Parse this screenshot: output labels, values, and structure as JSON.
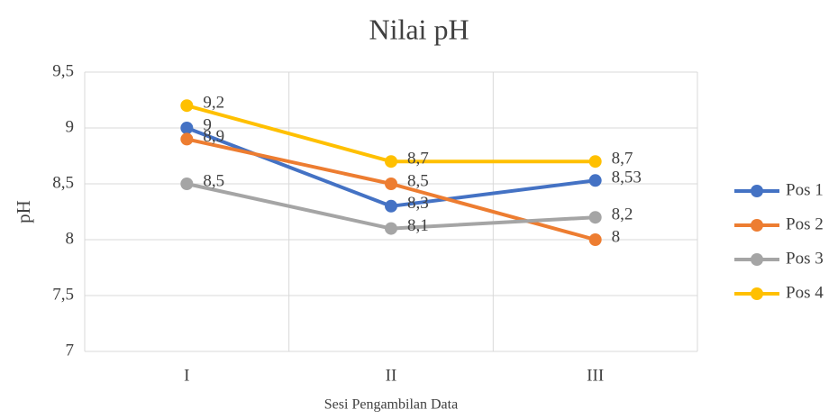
{
  "chart_data": {
    "type": "line",
    "title": "Nilai pH",
    "x_label": "Sesi Pengambilan Data",
    "y_label": "pH",
    "categories": [
      "I",
      "II",
      "III"
    ],
    "series": [
      {
        "name": "Pos 1",
        "color": "#4472c4",
        "values": [
          9,
          8.3,
          8.53
        ],
        "value_labels": [
          "9",
          "8,3",
          "8,53"
        ]
      },
      {
        "name": "Pos 2",
        "color": "#ed7d31",
        "values": [
          8.9,
          8.5,
          8
        ],
        "value_labels": [
          "8,9",
          "8,5",
          "8"
        ]
      },
      {
        "name": "Pos 3",
        "color": "#a5a5a5",
        "values": [
          8.5,
          8.1,
          8.2
        ],
        "value_labels": [
          "8,5",
          "8,1",
          "8,2"
        ]
      },
      {
        "name": "Pos 4",
        "color": "#ffc000",
        "values": [
          9.2,
          8.7,
          8.7
        ],
        "value_labels": [
          "9,2",
          "8,7",
          "8,7"
        ]
      }
    ],
    "ylim": [
      7,
      9.5
    ],
    "yticks": [
      7,
      {
        "value": 7.5,
        "label": "7,5"
      },
      8,
      {
        "value": 8.5,
        "label": "8,5"
      },
      9,
      {
        "value": 9.5,
        "label": "9,5"
      }
    ],
    "grid": true,
    "legend": "right"
  }
}
